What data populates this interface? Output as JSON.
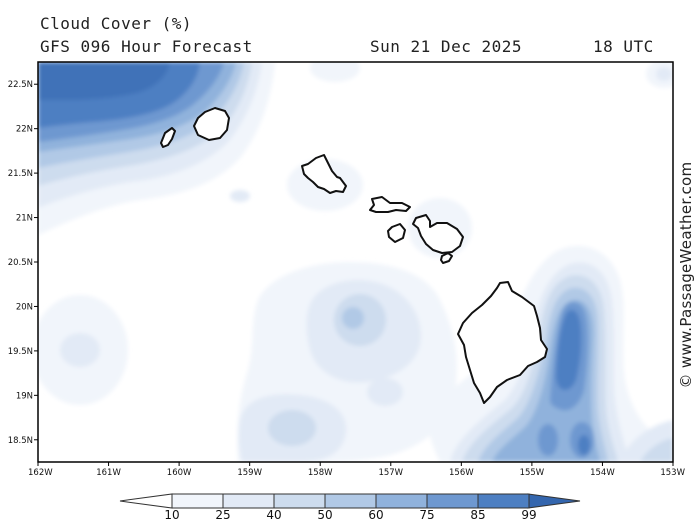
{
  "header": {
    "title": "Cloud Cover (%)",
    "model": "GFS 096 Hour Forecast",
    "date": "Sun 21 Dec 2025",
    "time": "18 UTC"
  },
  "watermark": "© www.PassageWeather.com",
  "map": {
    "lon_range": [
      -162,
      -153
    ],
    "lat_range": [
      18.25,
      22.75
    ],
    "lat_ticks": [
      {
        "value": 22.5,
        "label": "22.5N"
      },
      {
        "value": 22,
        "label": "22N"
      },
      {
        "value": 21.5,
        "label": "21.5N"
      },
      {
        "value": 21,
        "label": "21N"
      },
      {
        "value": 20.5,
        "label": "20.5N"
      },
      {
        "value": 20,
        "label": "20N"
      },
      {
        "value": 19.5,
        "label": "19.5N"
      },
      {
        "value": 19,
        "label": "19N"
      },
      {
        "value": 18.5,
        "label": "18.5N"
      }
    ],
    "lon_ticks": [
      {
        "value": -162,
        "label": "162W"
      },
      {
        "value": -161,
        "label": "161W"
      },
      {
        "value": -160,
        "label": "160W"
      },
      {
        "value": -159,
        "label": "159W"
      },
      {
        "value": -158,
        "label": "158W"
      },
      {
        "value": -157,
        "label": "157W"
      },
      {
        "value": -156,
        "label": "156W"
      },
      {
        "value": -155,
        "label": "155W"
      },
      {
        "value": -154,
        "label": "154W"
      },
      {
        "value": -153,
        "label": "153W"
      }
    ],
    "islands": [
      "Niihau",
      "Kauai",
      "Oahu",
      "Molokai",
      "Lanai",
      "Maui",
      "Kahoolawe",
      "Hawaii"
    ],
    "cloud_areas": [
      {
        "name": "northwest-cloud-band",
        "peak": 75
      },
      {
        "name": "west-of-oahu-patch",
        "peak": 10
      },
      {
        "name": "molokai-channel-patch",
        "peak": 10
      },
      {
        "name": "south-central-patch",
        "peak": 40
      },
      {
        "name": "southwest-patch",
        "peak": 25
      },
      {
        "name": "south-patch",
        "peak": 25
      },
      {
        "name": "east-of-big-island-band",
        "peak": 75
      },
      {
        "name": "southeast-corner-patch",
        "peak": 25
      }
    ]
  },
  "legend": {
    "levels": [
      10,
      25,
      40,
      50,
      60,
      75,
      85,
      99
    ],
    "labels": [
      "10",
      "25",
      "40",
      "50",
      "60",
      "75",
      "85",
      "99"
    ],
    "colors": [
      "#ffffff",
      "#f1f5fb",
      "#e2eaf6",
      "#cddcee",
      "#b1c9e6",
      "#90b2dc",
      "#6e98d0",
      "#4d7fc2",
      "#3466ae"
    ]
  }
}
